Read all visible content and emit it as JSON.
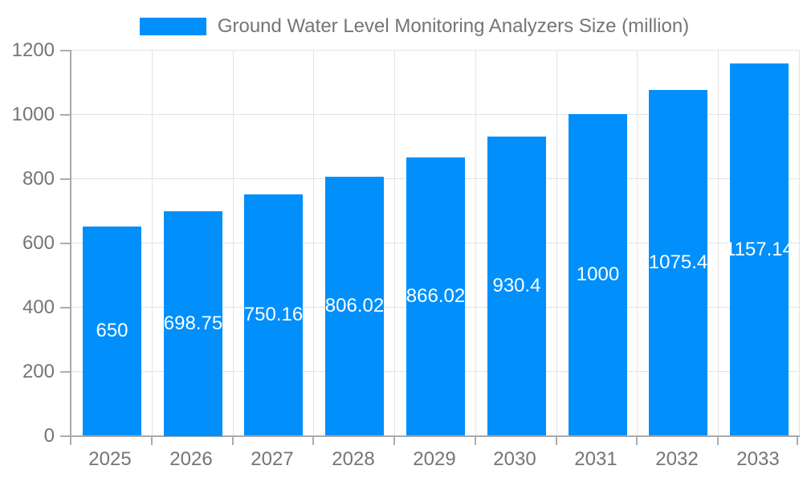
{
  "legend": {
    "label": "Ground Water Level Monitoring Analyzers Size (million)"
  },
  "chart_data": {
    "type": "bar",
    "title": "Ground Water Level Monitoring Analyzers Size (million)",
    "categories": [
      "2025",
      "2026",
      "2027",
      "2028",
      "2029",
      "2030",
      "2031",
      "2032",
      "2033"
    ],
    "values": [
      650,
      698.75,
      750.16,
      806.02,
      866.02,
      930.4,
      1000,
      1075.4,
      1157.14
    ],
    "value_labels": [
      "650",
      "698.75",
      "750.16",
      "806.02",
      "866.02",
      "930.4",
      "1000",
      "1075.4",
      "1157.14"
    ],
    "xlabel": "",
    "ylabel": "",
    "ylim": [
      0,
      1200
    ],
    "ytick_step": 200,
    "ytick_labels": [
      "0",
      "200",
      "400",
      "600",
      "800",
      "1000",
      "1200"
    ],
    "grid": true,
    "legend_position": "top",
    "data_label_position": "center-inside"
  },
  "colors": {
    "bar": "#008FFB",
    "axis": "#a9a9a9",
    "grid": "#e3e3e3",
    "tick_label": "#757575",
    "data_label": "#ffffff",
    "background": "#ffffff"
  }
}
